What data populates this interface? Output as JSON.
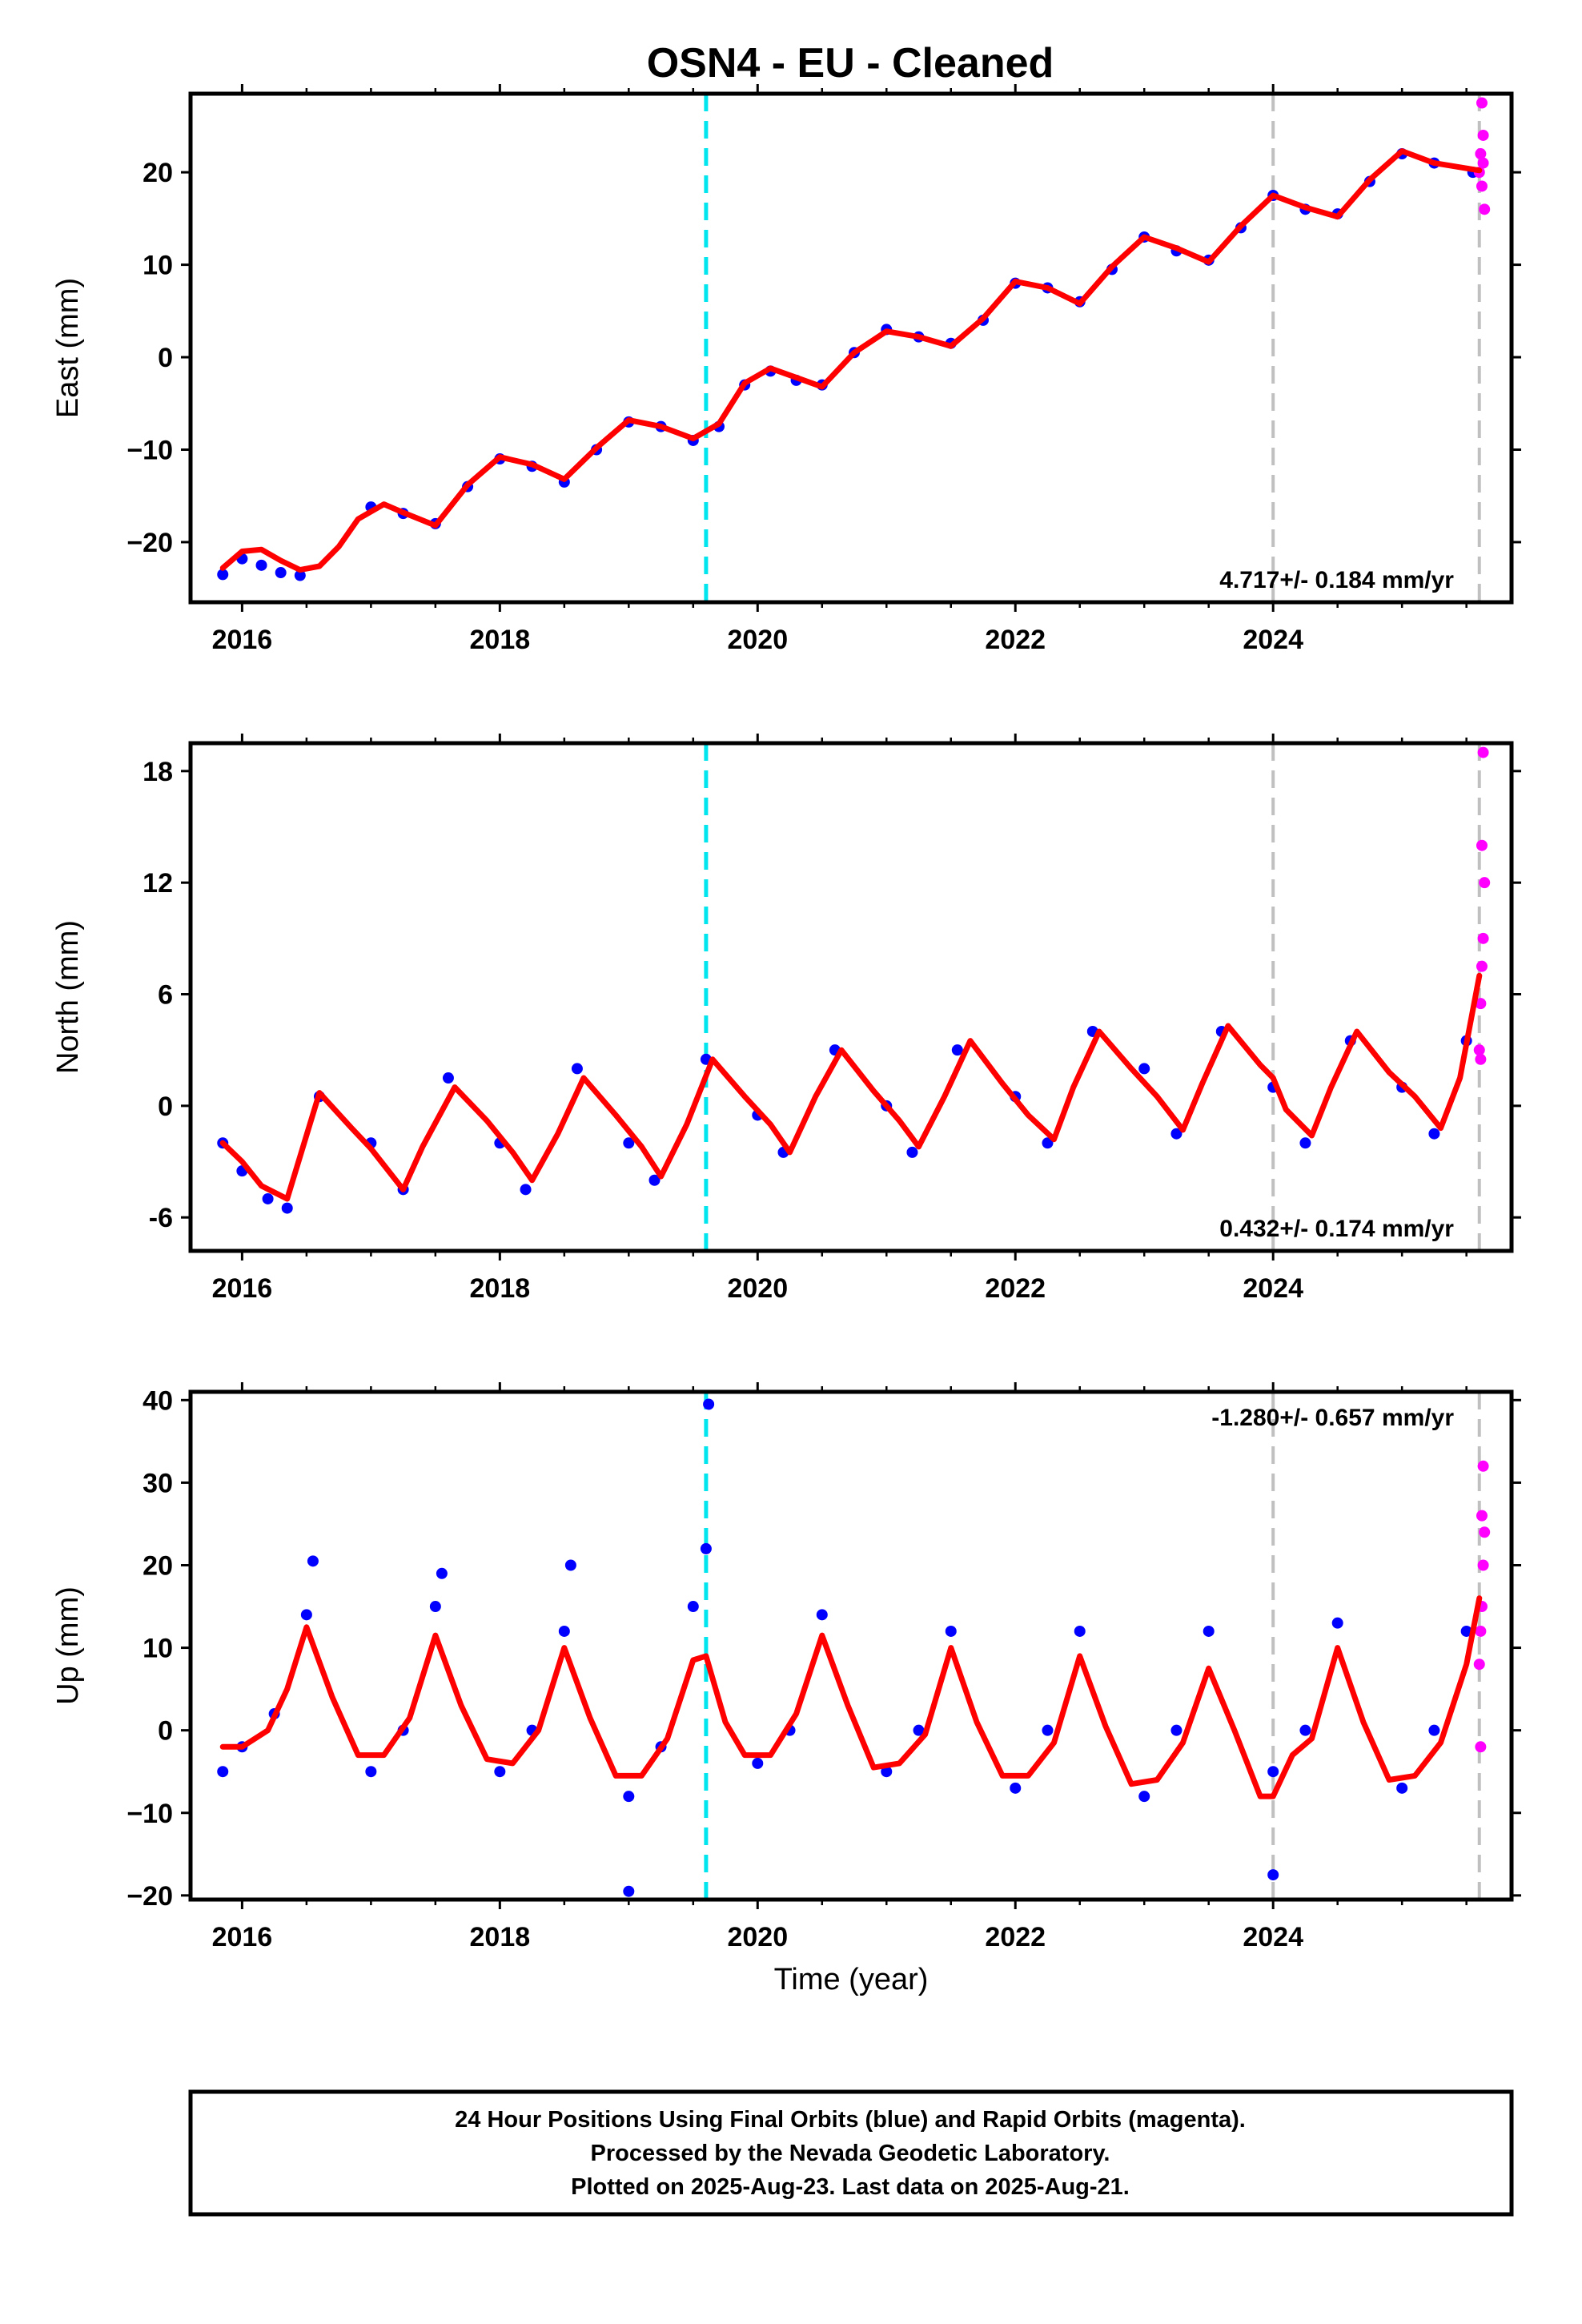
{
  "title": "OSN4  - EU - Cleaned",
  "footer": {
    "line1": "24 Hour Positions Using Final Orbits (blue) and Rapid Orbits (magenta).",
    "line2": "Processed by the Nevada Geodetic Laboratory.",
    "line3": "Plotted on 2025-Aug-23. Last data on 2025-Aug-21."
  },
  "colors": {
    "final_orbits": "#0000ff",
    "rapid_orbits": "#ff00ff",
    "model_fit": "#ff0000",
    "event_line": "#00e5ee",
    "reference_line": "#c0c0c0"
  },
  "chart_data": [
    {
      "type": "scatter",
      "panel": "east",
      "ylabel": "East (mm)",
      "xlabel": "",
      "rate": "4.717+/- 0.184 mm/yr",
      "rate_position": "bottom-right",
      "xlim": [
        2015.6,
        2025.85
      ],
      "ylim": [
        -26.5,
        28.5
      ],
      "xticks": [
        2016,
        2018,
        2020,
        2022,
        2024
      ],
      "xtick_labels": [
        "2016",
        "2018",
        "2020",
        "2022",
        "2024"
      ],
      "yticks": [
        -20,
        -10,
        0,
        10,
        20
      ],
      "ytick_labels": [
        "−20",
        "−10",
        "0",
        "10",
        "20"
      ],
      "vertical_lines": [
        {
          "x": 2019.6,
          "color": "cyan",
          "style": "dashed"
        },
        {
          "x": 2024.0,
          "color": "gray",
          "style": "dashed"
        },
        {
          "x": 2025.6,
          "color": "gray",
          "style": "dashed"
        }
      ],
      "series": [
        {
          "role": "final-orbits",
          "color": "blue",
          "x": [
            2015.85,
            2016.0,
            2016.15,
            2016.3,
            2016.45,
            2017.0,
            2017.25,
            2017.5,
            2017.75,
            2018.0,
            2018.25,
            2018.5,
            2018.75,
            2019.0,
            2019.25,
            2019.5,
            2019.7,
            2019.9,
            2020.1,
            2020.3,
            2020.5,
            2020.75,
            2021.0,
            2021.25,
            2021.5,
            2021.75,
            2022.0,
            2022.25,
            2022.5,
            2022.75,
            2023.0,
            2023.25,
            2023.5,
            2023.75,
            2024.0,
            2024.25,
            2024.5,
            2024.75,
            2025.0,
            2025.25,
            2025.55
          ],
          "y": [
            -23.5,
            -21.8,
            -22.5,
            -23.3,
            -23.6,
            -16.2,
            -16.9,
            -18.0,
            -14.0,
            -11.0,
            -11.8,
            -13.5,
            -10.0,
            -7.0,
            -7.5,
            -9.0,
            -7.5,
            -3.0,
            -1.5,
            -2.5,
            -3.0,
            0.5,
            3.0,
            2.2,
            1.5,
            4.0,
            8.0,
            7.5,
            6.0,
            9.5,
            13.0,
            11.5,
            10.5,
            14.0,
            17.5,
            16.0,
            15.5,
            19.0,
            22.0,
            21.0,
            20.0
          ]
        },
        {
          "role": "rapid-orbits",
          "color": "magenta",
          "x": [
            2025.6,
            2025.61,
            2025.62,
            2025.63,
            2025.64,
            2025.62,
            2025.63
          ],
          "y": [
            20.0,
            22.0,
            18.5,
            24.0,
            16.0,
            27.5,
            21.0
          ]
        },
        {
          "role": "model-fit",
          "color": "red",
          "x": [
            2015.85,
            2016.0,
            2016.15,
            2016.3,
            2016.45,
            2016.6,
            2016.75,
            2016.9,
            2017.1,
            2017.25,
            2017.5,
            2017.75,
            2018.0,
            2018.25,
            2018.5,
            2018.75,
            2019.0,
            2019.25,
            2019.5,
            2019.7,
            2019.9,
            2020.1,
            2020.3,
            2020.5,
            2020.75,
            2021.0,
            2021.25,
            2021.5,
            2021.75,
            2022.0,
            2022.25,
            2022.5,
            2022.75,
            2023.0,
            2023.25,
            2023.5,
            2023.75,
            2024.0,
            2024.25,
            2024.5,
            2024.75,
            2025.0,
            2025.25,
            2025.6
          ],
          "y": [
            -22.8,
            -21.0,
            -20.8,
            -22.0,
            -23.0,
            -22.6,
            -20.5,
            -17.5,
            -15.9,
            -16.8,
            -18.2,
            -13.8,
            -10.8,
            -11.6,
            -13.2,
            -9.8,
            -6.8,
            -7.5,
            -8.8,
            -7.2,
            -2.8,
            -1.2,
            -2.2,
            -3.2,
            0.5,
            2.8,
            2.2,
            1.2,
            4.2,
            8.2,
            7.5,
            5.8,
            9.8,
            13.0,
            11.8,
            10.3,
            14.2,
            17.5,
            16.2,
            15.2,
            19.2,
            22.3,
            21.0,
            20.2
          ]
        }
      ]
    },
    {
      "type": "scatter",
      "panel": "north",
      "ylabel": "North (mm)",
      "xlabel": "",
      "rate": "0.432+/- 0.174 mm/yr",
      "rate_position": "bottom-right",
      "xlim": [
        2015.6,
        2025.85
      ],
      "ylim": [
        -7.8,
        19.5
      ],
      "xticks": [
        2016,
        2018,
        2020,
        2022,
        2024
      ],
      "xtick_labels": [
        "2016",
        "2018",
        "2020",
        "2022",
        "2024"
      ],
      "yticks": [
        -6,
        0,
        6,
        12,
        18
      ],
      "ytick_labels": [
        "-6",
        "0",
        "6",
        "12",
        "18"
      ],
      "vertical_lines": [
        {
          "x": 2019.6,
          "color": "cyan",
          "style": "dashed"
        },
        {
          "x": 2024.0,
          "color": "gray",
          "style": "dashed"
        },
        {
          "x": 2025.6,
          "color": "gray",
          "style": "dashed"
        }
      ],
      "series": [
        {
          "role": "final-orbits",
          "color": "blue",
          "x": [
            2015.85,
            2016.0,
            2016.2,
            2016.35,
            2016.6,
            2017.0,
            2017.25,
            2017.6,
            2018.0,
            2018.2,
            2018.6,
            2019.0,
            2019.2,
            2019.6,
            2020.0,
            2020.2,
            2020.6,
            2021.0,
            2021.2,
            2021.55,
            2022.0,
            2022.25,
            2022.6,
            2023.0,
            2023.25,
            2023.6,
            2024.0,
            2024.25,
            2024.6,
            2025.0,
            2025.25,
            2025.5
          ],
          "y": [
            -2.0,
            -3.5,
            -5.0,
            -5.5,
            0.5,
            -2.0,
            -4.5,
            1.5,
            -2.0,
            -4.5,
            2.0,
            -2.0,
            -4.0,
            2.5,
            -0.5,
            -2.5,
            3.0,
            0.0,
            -2.5,
            3.0,
            0.5,
            -2.0,
            4.0,
            2.0,
            -1.5,
            4.0,
            1.0,
            -2.0,
            3.5,
            1.0,
            -1.5,
            3.5
          ]
        },
        {
          "role": "rapid-orbits",
          "color": "magenta",
          "x": [
            2025.6,
            2025.61,
            2025.62,
            2025.63,
            2025.64,
            2025.62,
            2025.63,
            2025.61
          ],
          "y": [
            3.0,
            5.5,
            7.5,
            9.0,
            12.0,
            14.0,
            19.0,
            2.5
          ]
        },
        {
          "role": "model-fit",
          "color": "red",
          "x": [
            2015.85,
            2016.0,
            2016.15,
            2016.35,
            2016.6,
            2016.85,
            2017.0,
            2017.25,
            2017.4,
            2017.65,
            2017.9,
            2018.1,
            2018.25,
            2018.45,
            2018.65,
            2018.9,
            2019.1,
            2019.25,
            2019.45,
            2019.65,
            2019.9,
            2020.1,
            2020.25,
            2020.45,
            2020.65,
            2020.9,
            2021.1,
            2021.25,
            2021.45,
            2021.65,
            2021.9,
            2022.1,
            2022.3,
            2022.45,
            2022.65,
            2022.9,
            2023.1,
            2023.3,
            2023.45,
            2023.65,
            2023.9,
            2024.0,
            2024.1,
            2024.3,
            2024.45,
            2024.65,
            2024.9,
            2025.1,
            2025.3,
            2025.45,
            2025.6
          ],
          "y": [
            -2.0,
            -3.0,
            -4.3,
            -5.0,
            0.7,
            -1.2,
            -2.3,
            -4.5,
            -2.2,
            1.0,
            -0.8,
            -2.5,
            -4.0,
            -1.5,
            1.5,
            -0.5,
            -2.2,
            -3.8,
            -1.0,
            2.5,
            0.5,
            -1.0,
            -2.5,
            0.5,
            3.0,
            0.8,
            -0.8,
            -2.2,
            0.5,
            3.5,
            1.2,
            -0.5,
            -1.8,
            1.0,
            4.0,
            2.0,
            0.5,
            -1.3,
            1.2,
            4.3,
            2.2,
            1.5,
            -0.2,
            -1.6,
            1.0,
            4.0,
            1.8,
            0.5,
            -1.2,
            1.5,
            7.0
          ]
        }
      ]
    },
    {
      "type": "scatter",
      "panel": "up",
      "ylabel": "Up (mm)",
      "xlabel": "Time (year)",
      "rate": "-1.280+/- 0.657 mm/yr",
      "rate_position": "top-right",
      "xlim": [
        2015.6,
        2025.85
      ],
      "ylim": [
        -20.5,
        41
      ],
      "xticks": [
        2016,
        2018,
        2020,
        2022,
        2024
      ],
      "xtick_labels": [
        "2016",
        "2018",
        "2020",
        "2022",
        "2024"
      ],
      "yticks": [
        -20,
        -10,
        0,
        10,
        20,
        30,
        40
      ],
      "ytick_labels": [
        "−20",
        "−10",
        "0",
        "10",
        "20",
        "30",
        "40"
      ],
      "vertical_lines": [
        {
          "x": 2019.6,
          "color": "cyan",
          "style": "dashed"
        },
        {
          "x": 2024.0,
          "color": "gray",
          "style": "dashed"
        },
        {
          "x": 2025.6,
          "color": "gray",
          "style": "dashed"
        }
      ],
      "series": [
        {
          "role": "final-orbits",
          "color": "blue",
          "x": [
            2015.85,
            2016.0,
            2016.25,
            2016.5,
            2016.55,
            2017.0,
            2017.25,
            2017.5,
            2017.55,
            2018.0,
            2018.25,
            2018.5,
            2018.55,
            2019.0,
            2019.0,
            2019.25,
            2019.5,
            2019.6,
            2019.62,
            2020.0,
            2020.25,
            2020.5,
            2021.0,
            2021.25,
            2021.5,
            2022.0,
            2022.25,
            2022.5,
            2023.0,
            2023.25,
            2023.5,
            2024.0,
            2024.0,
            2024.25,
            2024.5,
            2025.0,
            2025.25,
            2025.5
          ],
          "y": [
            -5.0,
            -2.0,
            2.0,
            14.0,
            20.5,
            -5.0,
            0.0,
            15.0,
            19.0,
            -5.0,
            0.0,
            12.0,
            20.0,
            -8.0,
            -19.5,
            -2.0,
            15.0,
            22.0,
            39.5,
            -4.0,
            0.0,
            14.0,
            -5.0,
            0.0,
            12.0,
            -7.0,
            0.0,
            12.0,
            -8.0,
            0.0,
            12.0,
            -5.0,
            -17.5,
            0.0,
            13.0,
            -7.0,
            0.0,
            12.0
          ]
        },
        {
          "role": "rapid-orbits",
          "color": "magenta",
          "x": [
            2025.6,
            2025.61,
            2025.62,
            2025.63,
            2025.64,
            2025.62,
            2025.63,
            2025.61
          ],
          "y": [
            8.0,
            12.0,
            15.0,
            20.0,
            24.0,
            26.0,
            32.0,
            -2.0
          ]
        },
        {
          "role": "model-fit",
          "color": "red",
          "x": [
            2015.85,
            2016.0,
            2016.2,
            2016.35,
            2016.5,
            2016.7,
            2016.9,
            2017.1,
            2017.3,
            2017.5,
            2017.7,
            2017.9,
            2018.1,
            2018.3,
            2018.5,
            2018.7,
            2018.9,
            2019.1,
            2019.3,
            2019.5,
            2019.6,
            2019.75,
            2019.9,
            2020.1,
            2020.3,
            2020.5,
            2020.7,
            2020.9,
            2021.1,
            2021.3,
            2021.5,
            2021.7,
            2021.9,
            2022.1,
            2022.3,
            2022.5,
            2022.7,
            2022.9,
            2023.1,
            2023.3,
            2023.5,
            2023.7,
            2023.9,
            2024.0,
            2024.15,
            2024.3,
            2024.5,
            2024.7,
            2024.9,
            2025.1,
            2025.3,
            2025.5,
            2025.6
          ],
          "y": [
            -2.0,
            -2.0,
            0.0,
            5.0,
            12.5,
            4.0,
            -3.0,
            -3.0,
            1.5,
            11.5,
            3.0,
            -3.5,
            -4.0,
            0.0,
            10.0,
            1.5,
            -5.5,
            -5.5,
            -1.0,
            8.5,
            9.0,
            1.0,
            -3.0,
            -3.0,
            2.0,
            11.5,
            3.0,
            -4.5,
            -4.0,
            -0.5,
            10.0,
            1.0,
            -5.5,
            -5.5,
            -1.5,
            9.0,
            0.5,
            -6.5,
            -6.0,
            -1.5,
            7.5,
            0.0,
            -8.0,
            -8.0,
            -3.0,
            -1.0,
            10.0,
            1.0,
            -6.0,
            -5.5,
            -1.5,
            8.0,
            16.0
          ]
        }
      ]
    }
  ]
}
